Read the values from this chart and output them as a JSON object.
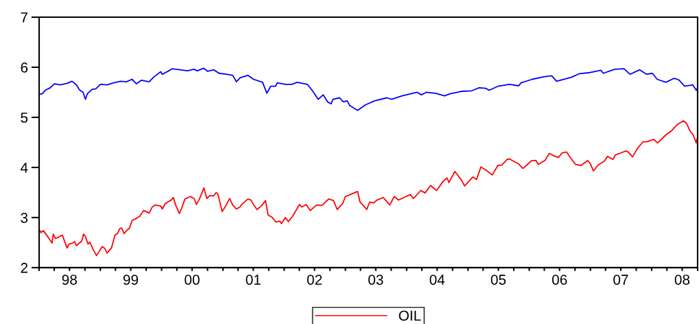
{
  "chart_data": {
    "type": "line",
    "xlim": [
      "1998-01-01",
      "2008-10-01"
    ],
    "ylim": [
      2,
      7
    ],
    "yticks": [
      2,
      3,
      4,
      5,
      6,
      7
    ],
    "xticks": [
      {
        "value": "1998-01-01",
        "label": null
      },
      {
        "value": "1998-04-01",
        "label": null
      },
      {
        "value": "1998-07-01",
        "label": "98"
      },
      {
        "value": "1998-10-01",
        "label": null
      },
      {
        "value": "1999-01-01",
        "label": null
      },
      {
        "value": "1999-04-01",
        "label": null
      },
      {
        "value": "1999-07-01",
        "label": "99"
      },
      {
        "value": "1999-10-01",
        "label": null
      },
      {
        "value": "2000-01-01",
        "label": null
      },
      {
        "value": "2000-04-01",
        "label": null
      },
      {
        "value": "2000-07-01",
        "label": "00"
      },
      {
        "value": "2000-10-01",
        "label": null
      },
      {
        "value": "2001-01-01",
        "label": null
      },
      {
        "value": "2001-04-01",
        "label": null
      },
      {
        "value": "2001-07-01",
        "label": "01"
      },
      {
        "value": "2001-10-01",
        "label": null
      },
      {
        "value": "2002-01-01",
        "label": null
      },
      {
        "value": "2002-04-01",
        "label": null
      },
      {
        "value": "2002-07-01",
        "label": "02"
      },
      {
        "value": "2002-10-01",
        "label": null
      },
      {
        "value": "2003-01-01",
        "label": null
      },
      {
        "value": "2003-04-01",
        "label": null
      },
      {
        "value": "2003-07-01",
        "label": "03"
      },
      {
        "value": "2003-10-01",
        "label": null
      },
      {
        "value": "2004-01-01",
        "label": null
      },
      {
        "value": "2004-04-01",
        "label": null
      },
      {
        "value": "2004-07-01",
        "label": "04"
      },
      {
        "value": "2004-10-01",
        "label": null
      },
      {
        "value": "2005-01-01",
        "label": null
      },
      {
        "value": "2005-04-01",
        "label": null
      },
      {
        "value": "2005-07-01",
        "label": "05"
      },
      {
        "value": "2005-10-01",
        "label": null
      },
      {
        "value": "2006-01-01",
        "label": null
      },
      {
        "value": "2006-04-01",
        "label": null
      },
      {
        "value": "2006-07-01",
        "label": "06"
      },
      {
        "value": "2006-10-01",
        "label": null
      },
      {
        "value": "2007-01-01",
        "label": null
      },
      {
        "value": "2007-04-01",
        "label": null
      },
      {
        "value": "2007-07-01",
        "label": "07"
      },
      {
        "value": "2007-10-01",
        "label": null
      },
      {
        "value": "2008-01-01",
        "label": null
      },
      {
        "value": "2008-04-01",
        "label": null
      },
      {
        "value": "2008-07-01",
        "label": "08"
      },
      {
        "value": "2008-10-01",
        "label": null
      }
    ],
    "grid": false,
    "legend": "bottom",
    "marker": "none",
    "line_style": "solid",
    "series": [
      {
        "color": "#0000ff",
        "x": [
          "1998-01-01",
          "1998-01-19",
          "1998-02-06",
          "1998-03-08",
          "1998-04-02",
          "1998-05-08",
          "1998-06-17",
          "1998-07-16",
          "1998-08-11",
          "1998-08-29",
          "1998-09-20",
          "1998-10-04",
          "1998-10-15",
          "1998-11-13",
          "1998-12-05",
          "1999-01-01",
          "1999-02-10",
          "1999-03-22",
          "1999-05-01",
          "1999-06-06",
          "1999-07-09",
          "1999-08-04",
          "1999-09-02",
          "1999-10-19",
          "1999-11-17",
          "1999-12-27",
          "2000-01-05",
          "2000-02-14",
          "2000-03-04",
          "2000-04-20",
          "2000-06-03",
          "2000-07-13",
          "2000-07-31",
          "2000-09-09",
          "2000-10-01",
          "2000-11-06",
          "2000-12-09",
          "2001-01-19",
          "2001-02-28",
          "2001-03-22",
          "2001-04-13",
          "2001-05-30",
          "2001-07-02",
          "2001-08-25",
          "2001-09-20",
          "2001-10-12",
          "2001-11-10",
          "2001-11-21",
          "2002-01-08",
          "2002-02-17",
          "2002-03-19",
          "2002-05-19",
          "2002-06-21",
          "2002-07-23",
          "2002-08-22",
          "2002-09-16",
          "2002-10-08",
          "2002-10-19",
          "2002-11-28",
          "2002-12-20",
          "2003-01-12",
          "2003-01-26",
          "2003-03-04",
          "2003-03-15",
          "2003-05-01",
          "2003-06-24",
          "2003-09-05",
          "2003-10-04",
          "2003-12-05",
          "2004-03-04",
          "2004-03-29",
          "2004-04-27",
          "2004-06-21",
          "2004-08-14",
          "2004-09-16",
          "2004-11-24",
          "2005-01-23",
          "2005-03-08",
          "2005-04-16",
          "2005-05-08",
          "2005-06-28",
          "2005-09-05",
          "2005-10-30",
          "2005-11-13",
          "2006-01-19",
          "2006-03-29",
          "2006-05-15",
          "2006-06-13",
          "2006-09-09",
          "2006-10-26",
          "2006-12-20",
          "2007-03-04",
          "2007-03-19",
          "2007-05-26",
          "2007-07-20",
          "2007-08-25",
          "2007-10-22",
          "2007-12-02",
          "2008-01-05",
          "2008-02-03",
          "2008-03-26",
          "2008-05-15",
          "2008-06-10",
          "2008-07-16",
          "2008-09-02",
          "2008-09-23",
          "2008-10-01"
        ],
        "values": [
          5.46,
          5.47,
          5.54,
          5.59,
          5.67,
          5.65,
          5.68,
          5.72,
          5.65,
          5.55,
          5.5,
          5.36,
          5.47,
          5.56,
          5.57,
          5.66,
          5.65,
          5.69,
          5.72,
          5.71,
          5.76,
          5.67,
          5.74,
          5.71,
          5.81,
          5.91,
          5.86,
          5.93,
          5.97,
          5.95,
          5.93,
          5.96,
          5.93,
          5.98,
          5.92,
          5.95,
          5.88,
          5.86,
          5.84,
          5.71,
          5.79,
          5.84,
          5.76,
          5.7,
          5.48,
          5.62,
          5.62,
          5.69,
          5.66,
          5.66,
          5.7,
          5.66,
          5.52,
          5.36,
          5.45,
          5.31,
          5.27,
          5.36,
          5.39,
          5.31,
          5.33,
          5.24,
          5.16,
          5.14,
          5.25,
          5.33,
          5.39,
          5.36,
          5.43,
          5.5,
          5.45,
          5.5,
          5.48,
          5.43,
          5.47,
          5.52,
          5.53,
          5.59,
          5.58,
          5.54,
          5.62,
          5.66,
          5.63,
          5.69,
          5.76,
          5.81,
          5.83,
          5.72,
          5.8,
          5.87,
          5.89,
          5.94,
          5.88,
          5.96,
          5.97,
          5.86,
          5.95,
          5.86,
          5.88,
          5.76,
          5.7,
          5.78,
          5.75,
          5.62,
          5.65,
          5.54,
          5.59
        ]
      },
      {
        "name": "OIL",
        "color": "#ff0000",
        "x": [
          "1998-01-01",
          "1998-01-12",
          "1998-01-26",
          "1998-02-21",
          "1998-03-19",
          "1998-03-26",
          "1998-04-09",
          "1998-05-19",
          "1998-06-17",
          "1998-06-28",
          "1998-07-20",
          "1998-07-31",
          "1998-08-11",
          "1998-09-12",
          "1998-09-23",
          "1998-10-04",
          "1998-10-19",
          "1998-10-30",
          "1998-11-21",
          "1998-12-09",
          "1999-01-12",
          "1999-01-26",
          "1999-02-10",
          "1999-03-08",
          "1999-03-29",
          "1999-04-13",
          "1999-04-27",
          "1999-05-08",
          "1999-05-23",
          "1999-06-06",
          "1999-06-24",
          "1999-07-09",
          "1999-08-07",
          "1999-08-25",
          "1999-09-16",
          "1999-10-19",
          "1999-11-06",
          "1999-11-24",
          "1999-12-27",
          "2000-01-05",
          "2000-01-23",
          "2000-02-28",
          "2000-03-11",
          "2000-03-26",
          "2000-04-16",
          "2000-04-27",
          "2000-05-19",
          "2000-06-21",
          "2000-07-13",
          "2000-07-27",
          "2000-08-14",
          "2000-09-09",
          "2000-09-27",
          "2000-10-15",
          "2000-11-06",
          "2000-11-21",
          "2000-12-02",
          "2000-12-27",
          "2001-01-19",
          "2001-02-10",
          "2001-02-28",
          "2001-03-22",
          "2001-04-13",
          "2001-04-23",
          "2001-05-30",
          "2001-06-17",
          "2001-07-02",
          "2001-07-23",
          "2001-08-18",
          "2001-09-12",
          "2001-09-27",
          "2001-10-19",
          "2001-11-13",
          "2001-12-05",
          "2001-12-16",
          "2002-01-08",
          "2002-01-26",
          "2002-02-21",
          "2002-04-02",
          "2002-04-16",
          "2002-05-12",
          "2002-06-06",
          "2002-07-13",
          "2002-08-14",
          "2002-09-23",
          "2002-10-22",
          "2002-11-13",
          "2002-12-16",
          "2003-01-01",
          "2003-01-19",
          "2003-02-06",
          "2003-03-15",
          "2003-03-29",
          "2003-04-16",
          "2003-05-08",
          "2003-05-26",
          "2003-06-17",
          "2003-07-09",
          "2003-08-14",
          "2003-09-23",
          "2003-10-19",
          "2003-11-13",
          "2003-12-16",
          "2004-01-23",
          "2004-02-10",
          "2004-03-26",
          "2004-04-20",
          "2004-05-23",
          "2004-06-28",
          "2004-08-07",
          "2004-08-29",
          "2004-09-09",
          "2004-10-15",
          "2004-11-24",
          "2004-12-12",
          "2005-01-05",
          "2005-01-30",
          "2005-02-21",
          "2005-03-19",
          "2005-04-16",
          "2005-05-26",
          "2005-06-28",
          "2005-07-23",
          "2005-08-22",
          "2005-09-05",
          "2005-09-27",
          "2005-10-30",
          "2005-11-24",
          "2005-12-16",
          "2006-01-12",
          "2006-02-10",
          "2006-02-24",
          "2006-04-05",
          "2006-05-01",
          "2006-05-30",
          "2006-06-24",
          "2006-07-16",
          "2006-08-11",
          "2006-09-09",
          "2006-10-04",
          "2006-11-06",
          "2006-12-16",
          "2007-01-01",
          "2007-01-19",
          "2007-02-17",
          "2007-03-26",
          "2007-04-13",
          "2007-05-15",
          "2007-05-30",
          "2007-07-02",
          "2007-07-31",
          "2007-08-14",
          "2007-09-09",
          "2007-10-08",
          "2007-11-10",
          "2007-12-02",
          "2008-01-12",
          "2008-02-06",
          "2008-03-26",
          "2008-05-01",
          "2008-06-03",
          "2008-07-09",
          "2008-07-27",
          "2008-08-18",
          "2008-09-05",
          "2008-09-23",
          "2008-10-01"
        ],
        "values": [
          2.76,
          2.7,
          2.74,
          2.62,
          2.49,
          2.67,
          2.58,
          2.65,
          2.39,
          2.47,
          2.49,
          2.52,
          2.44,
          2.53,
          2.67,
          2.62,
          2.47,
          2.51,
          2.35,
          2.24,
          2.42,
          2.39,
          2.29,
          2.39,
          2.65,
          2.68,
          2.78,
          2.79,
          2.68,
          2.74,
          2.79,
          2.94,
          2.99,
          3.03,
          3.14,
          3.09,
          3.21,
          3.25,
          3.23,
          3.17,
          3.28,
          3.35,
          3.4,
          3.24,
          3.08,
          3.16,
          3.37,
          3.42,
          3.38,
          3.26,
          3.37,
          3.59,
          3.38,
          3.44,
          3.43,
          3.5,
          3.47,
          3.12,
          3.24,
          3.38,
          3.25,
          3.17,
          3.21,
          3.26,
          3.37,
          3.35,
          3.26,
          3.16,
          3.23,
          3.34,
          3.05,
          3.01,
          2.91,
          2.93,
          2.88,
          3.0,
          2.92,
          3.03,
          3.26,
          3.21,
          3.26,
          3.14,
          3.25,
          3.24,
          3.37,
          3.34,
          3.16,
          3.28,
          3.42,
          3.44,
          3.47,
          3.52,
          3.31,
          3.25,
          3.16,
          3.31,
          3.29,
          3.35,
          3.4,
          3.25,
          3.42,
          3.35,
          3.4,
          3.46,
          3.38,
          3.54,
          3.49,
          3.64,
          3.54,
          3.73,
          3.79,
          3.7,
          3.92,
          3.74,
          3.63,
          3.72,
          3.81,
          3.76,
          4.01,
          3.95,
          3.85,
          4.04,
          4.05,
          4.16,
          4.17,
          4.13,
          4.07,
          3.98,
          4.04,
          4.13,
          4.14,
          4.06,
          4.14,
          4.28,
          4.23,
          4.2,
          4.29,
          4.31,
          4.17,
          4.06,
          4.04,
          4.14,
          4.07,
          3.93,
          4.05,
          4.13,
          4.22,
          4.16,
          4.25,
          4.29,
          4.33,
          4.31,
          4.21,
          4.38,
          4.51,
          4.51,
          4.56,
          4.49,
          4.65,
          4.74,
          4.86,
          4.93,
          4.88,
          4.72,
          4.65,
          4.49,
          4.61
        ]
      }
    ]
  }
}
